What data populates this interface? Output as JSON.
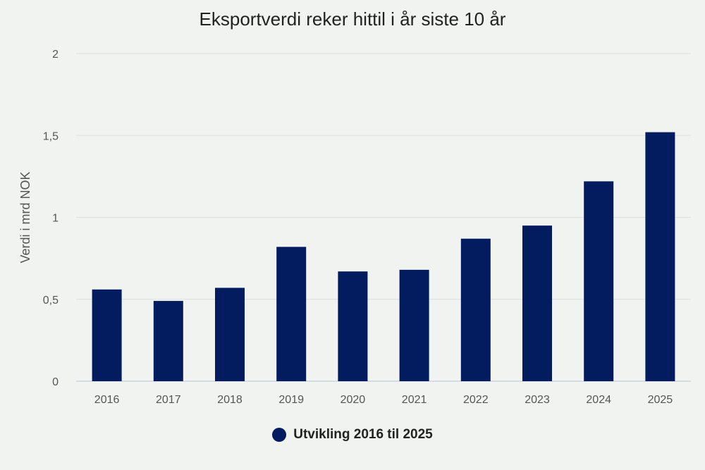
{
  "chart_data": {
    "type": "bar",
    "title": "Eksportverdi reker hittil i år siste 10 år",
    "ylabel": "Verdi i mrd NOK",
    "xlabel": "",
    "categories": [
      "2016",
      "2017",
      "2018",
      "2019",
      "2020",
      "2021",
      "2022",
      "2023",
      "2024",
      "2025"
    ],
    "series": [
      {
        "name": "Utvikling 2016 til 2025",
        "values": [
          0.56,
          0.49,
          0.57,
          0.82,
          0.67,
          0.68,
          0.87,
          0.95,
          1.22,
          1.52
        ],
        "color": "#031c5f"
      }
    ],
    "ylim": [
      0,
      2
    ],
    "yticks": [
      0,
      0.5,
      1,
      1.5,
      2
    ],
    "ytick_labels": [
      "0",
      "0,5",
      "1",
      "1,5",
      "2"
    ],
    "grid": true,
    "legend_position": "bottom-center"
  }
}
